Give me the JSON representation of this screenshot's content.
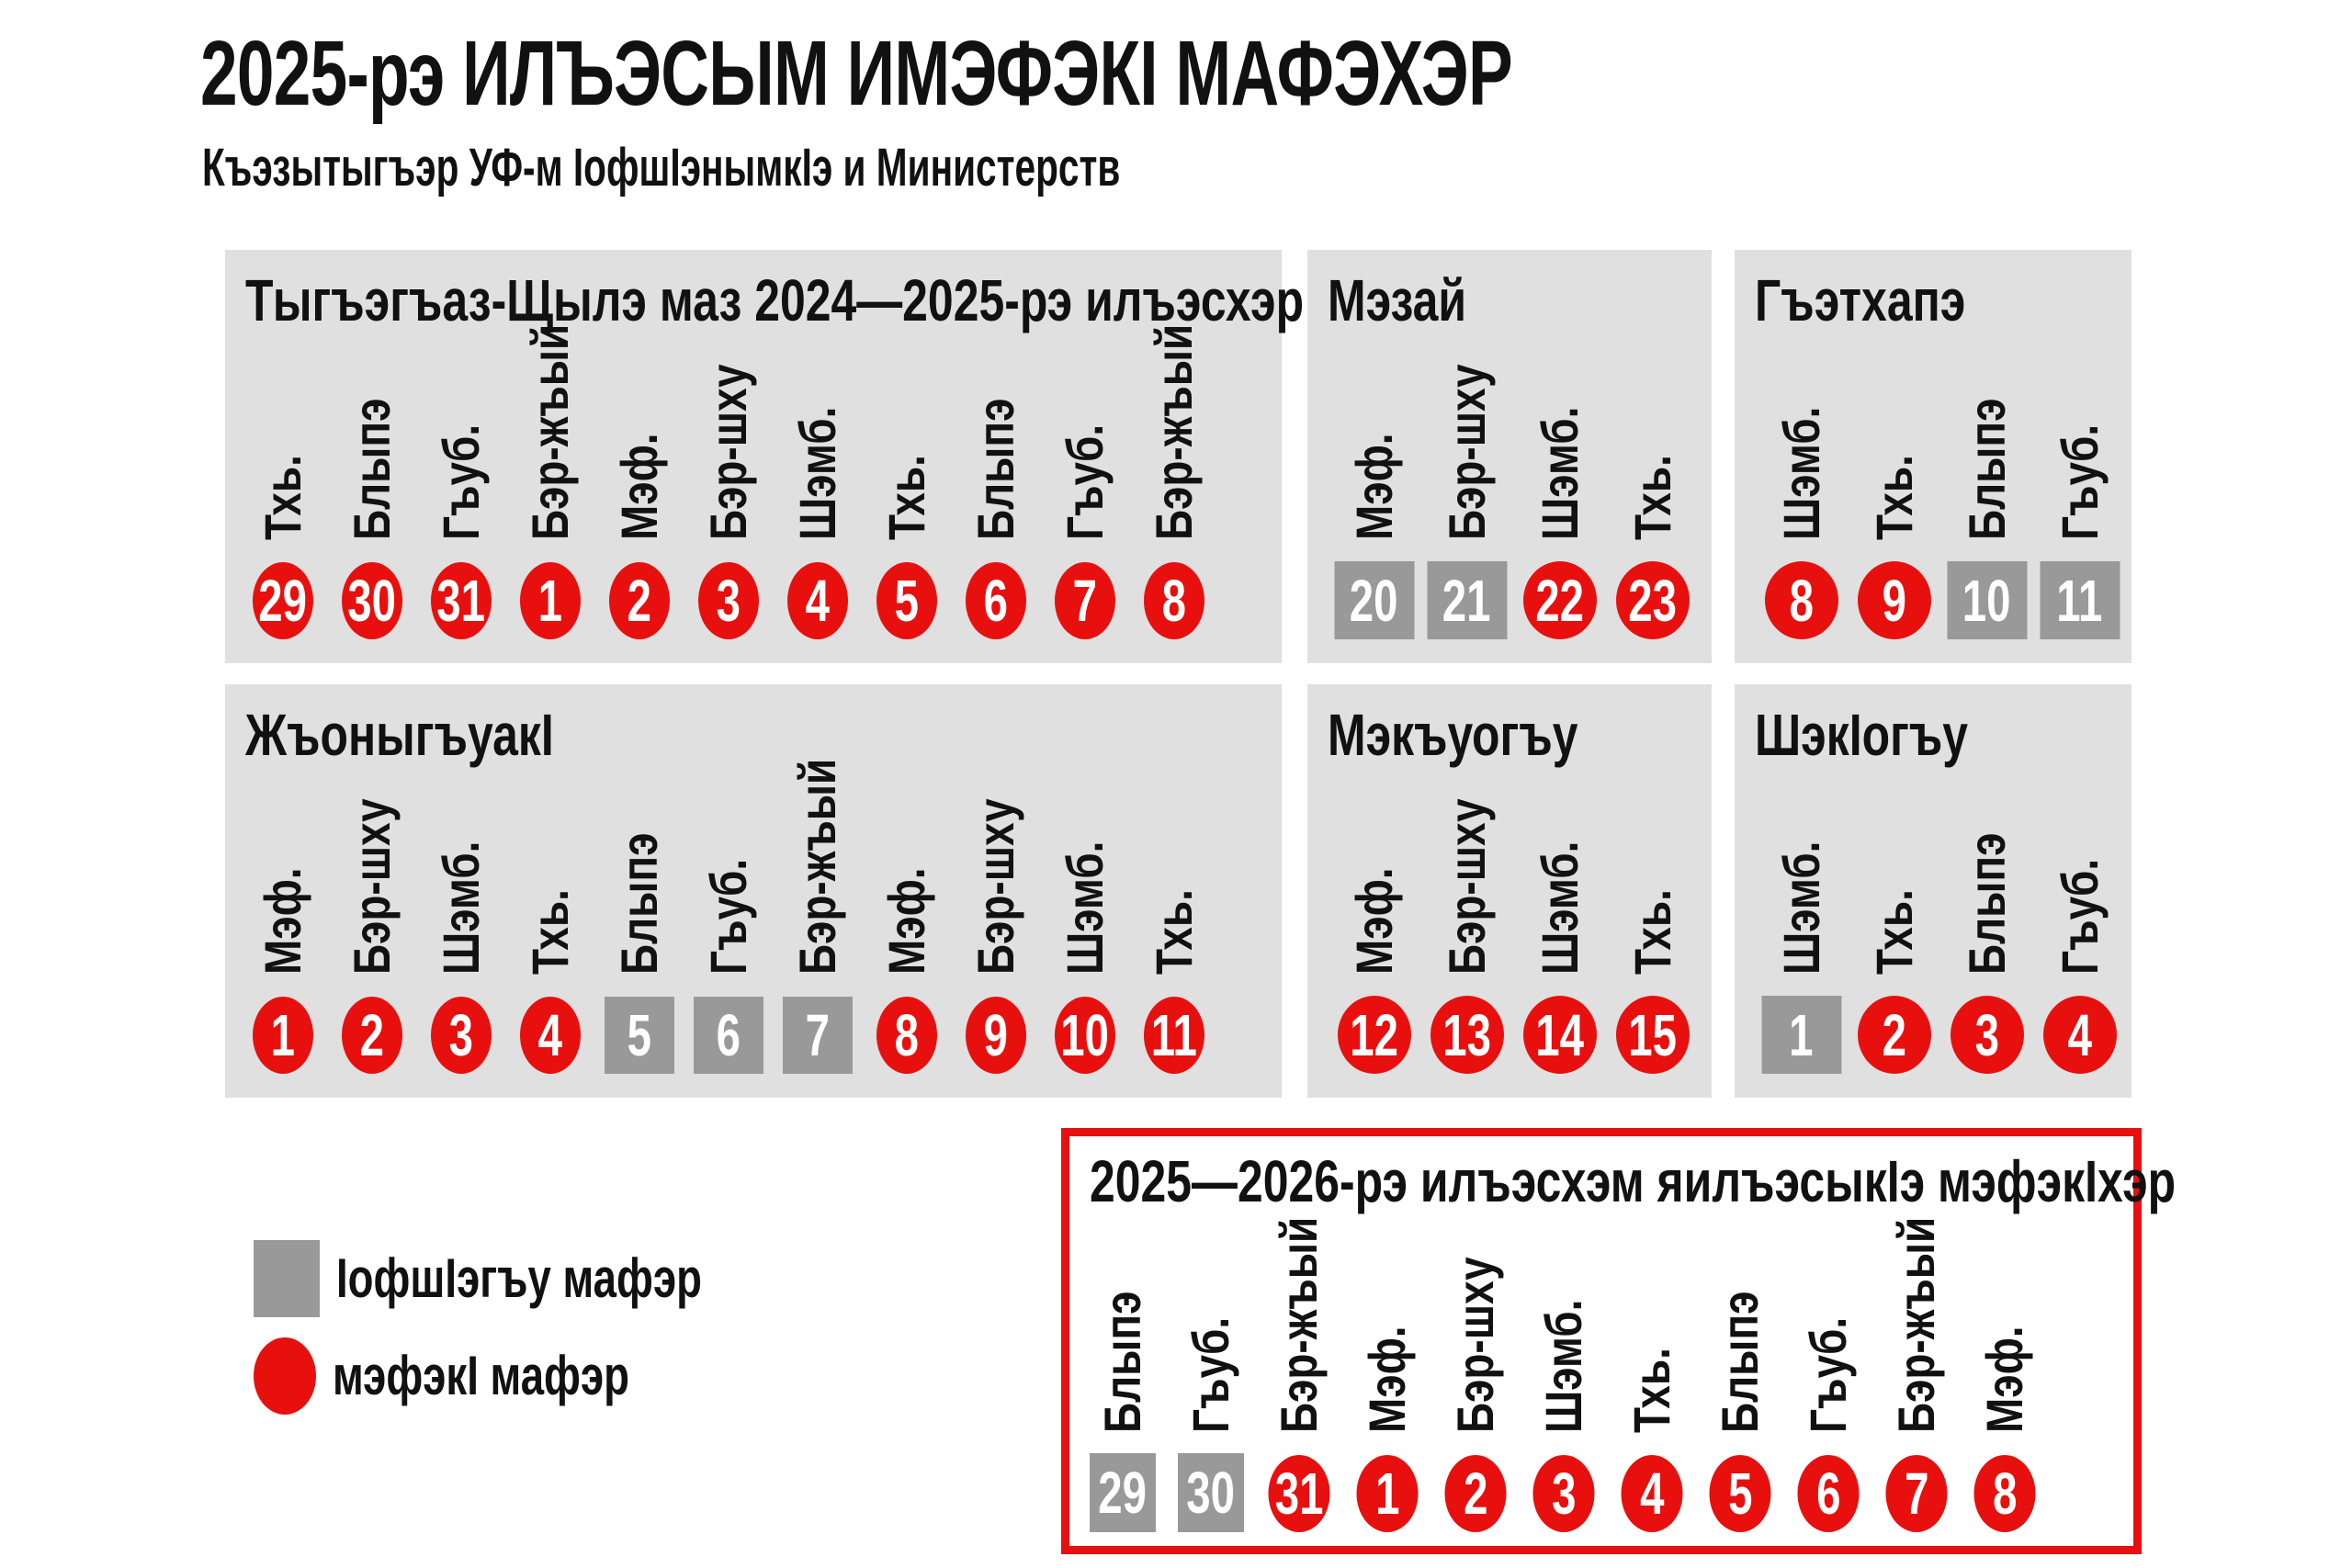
{
  "header": {
    "title": "2025-рэ ИЛЪЭСЫМ ИМЭФЭКI МАФЭХЭР",
    "subtitle": "Къэзытыгъэр УФ-м IофшIэнымкIэ и Министерств"
  },
  "colors": {
    "holiday_red": "#e7100e",
    "workday_gray": "#999999",
    "panel_background": "#e0e0e0"
  },
  "legend": {
    "workday": "IофшIэгъу мафэр",
    "holiday": "мэфэкI мафэр"
  },
  "panels": [
    {
      "id": "dec_jan",
      "size": "big",
      "title": "Тыгъэгъаз-Щылэ маз 2024—2025-рэ илъэсхэр",
      "columns": [
        {
          "day": "Тхь.",
          "date": "29",
          "type": "holiday"
        },
        {
          "day": "Блыпэ",
          "date": "30",
          "type": "holiday"
        },
        {
          "day": "Гъуб.",
          "date": "31",
          "type": "holiday"
        },
        {
          "day": "Бэр-жъый",
          "date": "1",
          "type": "holiday"
        },
        {
          "day": "Мэф.",
          "date": "2",
          "type": "holiday"
        },
        {
          "day": "Бэр-шху",
          "date": "3",
          "type": "holiday"
        },
        {
          "day": "Шэмб.",
          "date": "4",
          "type": "holiday"
        },
        {
          "day": "Тхь.",
          "date": "5",
          "type": "holiday"
        },
        {
          "day": "Блыпэ",
          "date": "6",
          "type": "holiday"
        },
        {
          "day": "Гъуб.",
          "date": "7",
          "type": "holiday"
        },
        {
          "day": "Бэр-жъый",
          "date": "8",
          "type": "holiday"
        }
      ]
    },
    {
      "id": "feb",
      "size": "small",
      "title": "Мэзай",
      "columns": [
        {
          "day": "Мэф.",
          "date": "20",
          "type": "work"
        },
        {
          "day": "Бэр-шху",
          "date": "21",
          "type": "work"
        },
        {
          "day": "Шэмб.",
          "date": "22",
          "type": "holiday"
        },
        {
          "day": "Тхь.",
          "date": "23",
          "type": "holiday"
        }
      ]
    },
    {
      "id": "mar",
      "size": "small",
      "title": "Гъэтхапэ",
      "columns": [
        {
          "day": "Шэмб.",
          "date": "8",
          "type": "holiday"
        },
        {
          "day": "Тхь.",
          "date": "9",
          "type": "holiday"
        },
        {
          "day": "Блыпэ",
          "date": "10",
          "type": "work"
        },
        {
          "day": "Гъуб.",
          "date": "11",
          "type": "work"
        }
      ]
    },
    {
      "id": "may",
      "size": "big",
      "title": "ЖъоныгъуакI",
      "columns": [
        {
          "day": "Мэф.",
          "date": "1",
          "type": "holiday"
        },
        {
          "day": "Бэр-шху",
          "date": "2",
          "type": "holiday"
        },
        {
          "day": "Шэмб.",
          "date": "3",
          "type": "holiday"
        },
        {
          "day": "Тхь.",
          "date": "4",
          "type": "holiday"
        },
        {
          "day": "Блыпэ",
          "date": "5",
          "type": "work"
        },
        {
          "day": "Гъуб.",
          "date": "6",
          "type": "work"
        },
        {
          "day": "Бэр-жъый",
          "date": "7",
          "type": "work"
        },
        {
          "day": "Мэф.",
          "date": "8",
          "type": "holiday"
        },
        {
          "day": "Бэр-шху",
          "date": "9",
          "type": "holiday"
        },
        {
          "day": "Шэмб.",
          "date": "10",
          "type": "holiday"
        },
        {
          "day": "Тхь.",
          "date": "11",
          "type": "holiday"
        }
      ]
    },
    {
      "id": "jun",
      "size": "small",
      "title": "Мэкъуогъу",
      "columns": [
        {
          "day": "Мэф.",
          "date": "12",
          "type": "holiday"
        },
        {
          "day": "Бэр-шху",
          "date": "13",
          "type": "holiday"
        },
        {
          "day": "Шэмб.",
          "date": "14",
          "type": "holiday"
        },
        {
          "day": "Тхь.",
          "date": "15",
          "type": "holiday"
        }
      ]
    },
    {
      "id": "nov",
      "size": "small",
      "title": "ШэкIогъу",
      "columns": [
        {
          "day": "Шэмб.",
          "date": "1",
          "type": "work"
        },
        {
          "day": "Тхь.",
          "date": "2",
          "type": "holiday"
        },
        {
          "day": "Блыпэ",
          "date": "3",
          "type": "holiday"
        },
        {
          "day": "Гъуб.",
          "date": "4",
          "type": "holiday"
        }
      ]
    },
    {
      "id": "newyear",
      "size": "bottom",
      "title": "2025—2026-рэ илъэсхэм яилъэсыкIэ мэфэкIхэр",
      "columns": [
        {
          "day": "Блыпэ",
          "date": "29",
          "type": "work"
        },
        {
          "day": "Гъуб.",
          "date": "30",
          "type": "work"
        },
        {
          "day": "Бэр-жъый",
          "date": "31",
          "type": "holiday"
        },
        {
          "day": "Мэф.",
          "date": "1",
          "type": "holiday"
        },
        {
          "day": "Бэр-шху",
          "date": "2",
          "type": "holiday"
        },
        {
          "day": "Шэмб.",
          "date": "3",
          "type": "holiday"
        },
        {
          "day": "Тхь.",
          "date": "4",
          "type": "holiday"
        },
        {
          "day": "Блыпэ",
          "date": "5",
          "type": "holiday"
        },
        {
          "day": "Гъуб.",
          "date": "6",
          "type": "holiday"
        },
        {
          "day": "Бэр-жъый",
          "date": "7",
          "type": "holiday"
        },
        {
          "day": "Мэф.",
          "date": "8",
          "type": "holiday"
        }
      ]
    }
  ]
}
